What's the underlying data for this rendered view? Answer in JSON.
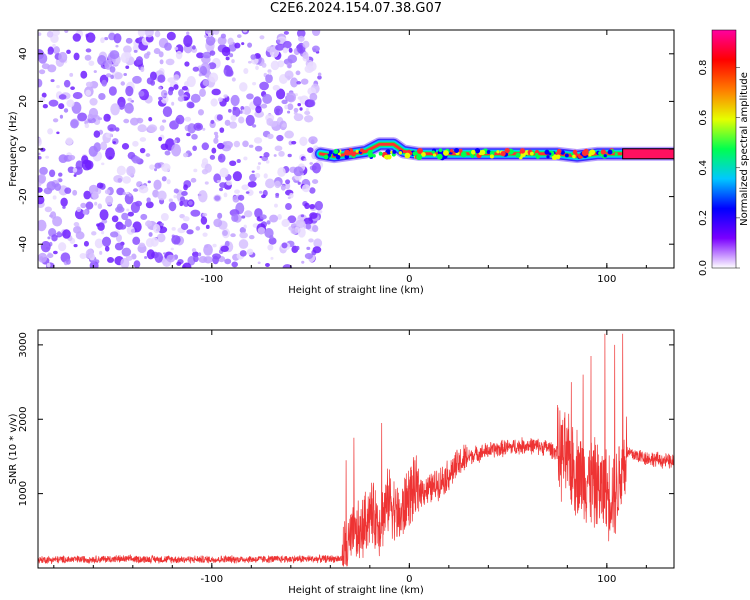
{
  "title": "C2E6.2024.154.07.38.G07",
  "chart_data": [
    {
      "type": "heatmap",
      "xlabel": "Height of straight line (km)",
      "ylabel": "Frequency (Hz)",
      "xlim": [
        -188,
        134
      ],
      "ylim": [
        -50,
        50
      ],
      "x_ticks": [
        -100,
        0,
        100
      ],
      "y_ticks": [
        -40,
        -20,
        0,
        20,
        40
      ],
      "colorbar": {
        "label": "Normalized spectral amplitude",
        "ticks": [
          "0.0",
          "0.2",
          "0.4",
          "0.6",
          "0.8"
        ],
        "colors": [
          "#ffffff",
          "#7a00ff",
          "#0000ff",
          "#00c8ff",
          "#00ff50",
          "#e6ff00",
          "#ff7a00",
          "#ff0000",
          "#ff00a0"
        ]
      },
      "noise_region_x": [
        -188,
        -45
      ],
      "signal_track": [
        {
          "x": -45,
          "y": -2
        },
        {
          "x": -38,
          "y": -3
        },
        {
          "x": -30,
          "y": -2
        },
        {
          "x": -22,
          "y": -1
        },
        {
          "x": -15,
          "y": 2
        },
        {
          "x": -8,
          "y": 2
        },
        {
          "x": -3,
          "y": -1
        },
        {
          "x": 5,
          "y": -2
        },
        {
          "x": 20,
          "y": -2
        },
        {
          "x": 50,
          "y": -2
        },
        {
          "x": 75,
          "y": -2
        },
        {
          "x": 85,
          "y": -3
        },
        {
          "x": 95,
          "y": -2
        },
        {
          "x": 108,
          "y": -2
        },
        {
          "x": 134,
          "y": -2
        }
      ]
    },
    {
      "type": "line",
      "xlabel": "Height of straight line (km)",
      "ylabel": "SNR (10 * v/v)",
      "xlim": [
        -188,
        134
      ],
      "ylim": [
        0,
        3200
      ],
      "x_ticks": [
        -100,
        0,
        100
      ],
      "y_ticks": [
        1000,
        2000,
        3000
      ],
      "color": "#ee3333",
      "series": [
        {
          "values": [
            {
              "x": -188,
              "y": 110
            },
            {
              "x": -150,
              "y": 120
            },
            {
              "x": -100,
              "y": 115
            },
            {
              "x": -60,
              "y": 120
            },
            {
              "x": -34,
              "y": 125
            },
            {
              "x": -30,
              "y": 350
            },
            {
              "x": -24,
              "y": 500
            },
            {
              "x": -20,
              "y": 750
            },
            {
              "x": -15,
              "y": 600
            },
            {
              "x": -10,
              "y": 950
            },
            {
              "x": -5,
              "y": 650
            },
            {
              "x": 0,
              "y": 1000
            },
            {
              "x": 5,
              "y": 1050
            },
            {
              "x": 10,
              "y": 1050
            },
            {
              "x": 15,
              "y": 1150
            },
            {
              "x": 20,
              "y": 1250
            },
            {
              "x": 25,
              "y": 1400
            },
            {
              "x": 30,
              "y": 1500
            },
            {
              "x": 40,
              "y": 1580
            },
            {
              "x": 50,
              "y": 1620
            },
            {
              "x": 60,
              "y": 1650
            },
            {
              "x": 70,
              "y": 1620
            },
            {
              "x": 78,
              "y": 1500
            },
            {
              "x": 85,
              "y": 1300
            },
            {
              "x": 90,
              "y": 1200
            },
            {
              "x": 95,
              "y": 1100
            },
            {
              "x": 100,
              "y": 1000
            },
            {
              "x": 105,
              "y": 1050
            },
            {
              "x": 110,
              "y": 1550
            },
            {
              "x": 120,
              "y": 1480
            },
            {
              "x": 134,
              "y": 1420
            }
          ]
        }
      ],
      "spikes": [
        {
          "x": -32,
          "y": 1450
        },
        {
          "x": -28,
          "y": 1750
        },
        {
          "x": -14,
          "y": 1950
        },
        {
          "x": 82,
          "y": 2500
        },
        {
          "x": 88,
          "y": 2600
        },
        {
          "x": 92,
          "y": 2850
        },
        {
          "x": 99,
          "y": 3150
        },
        {
          "x": 104,
          "y": 3000
        },
        {
          "x": 108,
          "y": 3150
        }
      ]
    }
  ]
}
